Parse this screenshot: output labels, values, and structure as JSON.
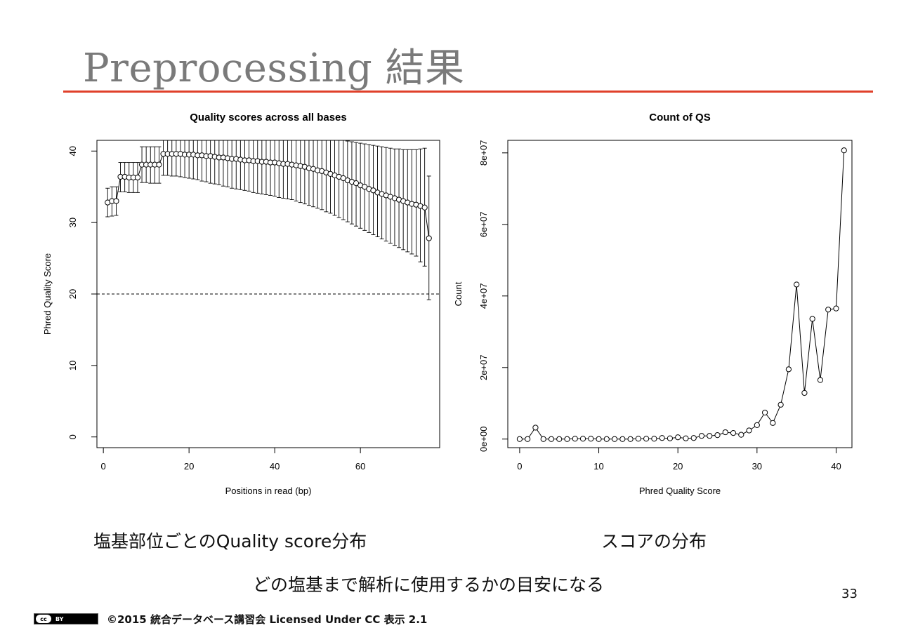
{
  "slide": {
    "title": "Preprocessing 結果",
    "caption_left": "塩基部位ごとのQuality score分布",
    "caption_right": "スコアの分布",
    "caption_bottom": "どの塩基まで解析に使用するかの目安になる",
    "page_number": "33",
    "footer": "©2015 統合データベース講習会 Licensed Under CC  表示 2.1",
    "cc_badge": {
      "cc": "cc",
      "by": "BY"
    },
    "accent_color": "#e0402a"
  },
  "chart_data": [
    {
      "type": "line",
      "title": "Quality scores across all bases",
      "xlabel": "Positions in read (bp)",
      "ylabel": "Phred Quality Score",
      "xlim": [
        -1.5,
        78.5
      ],
      "ylim": [
        -1.5,
        41.5
      ],
      "xticks": [
        0,
        20,
        40,
        60
      ],
      "yticks": [
        0,
        10,
        20,
        30,
        40
      ],
      "reference_line": 20,
      "points": [
        {
          "x": 1,
          "y": 32.8,
          "lo": 30.8,
          "hi": 34.8
        },
        {
          "x": 2,
          "y": 33.0,
          "lo": 30.9,
          "hi": 35.0
        },
        {
          "x": 3,
          "y": 33.0,
          "lo": 31.0,
          "hi": 35.0
        },
        {
          "x": 4,
          "y": 36.4,
          "lo": 34.3,
          "hi": 38.4
        },
        {
          "x": 5,
          "y": 36.4,
          "lo": 34.3,
          "hi": 38.4
        },
        {
          "x": 6,
          "y": 36.3,
          "lo": 34.2,
          "hi": 38.4
        },
        {
          "x": 7,
          "y": 36.3,
          "lo": 34.2,
          "hi": 38.4
        },
        {
          "x": 8,
          "y": 36.3,
          "lo": 34.2,
          "hi": 38.4
        },
        {
          "x": 9,
          "y": 38.1,
          "lo": 35.6,
          "hi": 40.6
        },
        {
          "x": 10,
          "y": 38.1,
          "lo": 35.6,
          "hi": 40.6
        },
        {
          "x": 11,
          "y": 38.1,
          "lo": 35.5,
          "hi": 40.6
        },
        {
          "x": 12,
          "y": 38.1,
          "lo": 35.5,
          "hi": 40.6
        },
        {
          "x": 13,
          "y": 38.1,
          "lo": 35.5,
          "hi": 40.6
        },
        {
          "x": 14,
          "y": 39.6,
          "lo": 36.6,
          "hi": 41.5
        },
        {
          "x": 15,
          "y": 39.6,
          "lo": 36.6,
          "hi": 41.5
        },
        {
          "x": 16,
          "y": 39.6,
          "lo": 36.5,
          "hi": 41.5
        },
        {
          "x": 17,
          "y": 39.6,
          "lo": 36.5,
          "hi": 41.5
        },
        {
          "x": 18,
          "y": 39.6,
          "lo": 36.4,
          "hi": 41.5
        },
        {
          "x": 19,
          "y": 39.5,
          "lo": 36.3,
          "hi": 41.5
        },
        {
          "x": 20,
          "y": 39.5,
          "lo": 36.2,
          "hi": 41.5
        },
        {
          "x": 21,
          "y": 39.5,
          "lo": 36.1,
          "hi": 41.5
        },
        {
          "x": 22,
          "y": 39.4,
          "lo": 36.0,
          "hi": 41.5
        },
        {
          "x": 23,
          "y": 39.4,
          "lo": 35.8,
          "hi": 41.5
        },
        {
          "x": 24,
          "y": 39.3,
          "lo": 35.7,
          "hi": 41.5
        },
        {
          "x": 25,
          "y": 39.3,
          "lo": 35.5,
          "hi": 41.5
        },
        {
          "x": 26,
          "y": 39.2,
          "lo": 35.4,
          "hi": 41.5
        },
        {
          "x": 27,
          "y": 39.1,
          "lo": 35.3,
          "hi": 41.5
        },
        {
          "x": 28,
          "y": 39.1,
          "lo": 35.1,
          "hi": 41.5
        },
        {
          "x": 29,
          "y": 39.0,
          "lo": 35.0,
          "hi": 41.5
        },
        {
          "x": 30,
          "y": 38.9,
          "lo": 34.8,
          "hi": 41.5
        },
        {
          "x": 31,
          "y": 38.9,
          "lo": 34.7,
          "hi": 41.5
        },
        {
          "x": 32,
          "y": 38.8,
          "lo": 34.6,
          "hi": 41.5
        },
        {
          "x": 33,
          "y": 38.7,
          "lo": 34.5,
          "hi": 41.5
        },
        {
          "x": 34,
          "y": 38.7,
          "lo": 34.4,
          "hi": 41.5
        },
        {
          "x": 35,
          "y": 38.6,
          "lo": 34.2,
          "hi": 41.5
        },
        {
          "x": 36,
          "y": 38.6,
          "lo": 34.1,
          "hi": 41.5
        },
        {
          "x": 37,
          "y": 38.5,
          "lo": 34.0,
          "hi": 41.5
        },
        {
          "x": 38,
          "y": 38.5,
          "lo": 33.9,
          "hi": 41.5
        },
        {
          "x": 39,
          "y": 38.4,
          "lo": 33.8,
          "hi": 41.5
        },
        {
          "x": 40,
          "y": 38.4,
          "lo": 33.7,
          "hi": 41.5
        },
        {
          "x": 41,
          "y": 38.3,
          "lo": 33.5,
          "hi": 41.5
        },
        {
          "x": 42,
          "y": 38.2,
          "lo": 33.4,
          "hi": 41.5
        },
        {
          "x": 43,
          "y": 38.2,
          "lo": 33.3,
          "hi": 41.5
        },
        {
          "x": 44,
          "y": 38.1,
          "lo": 33.2,
          "hi": 41.5
        },
        {
          "x": 45,
          "y": 38.0,
          "lo": 33.0,
          "hi": 41.5
        },
        {
          "x": 46,
          "y": 37.9,
          "lo": 32.8,
          "hi": 41.5
        },
        {
          "x": 47,
          "y": 37.8,
          "lo": 32.6,
          "hi": 41.5
        },
        {
          "x": 48,
          "y": 37.6,
          "lo": 32.4,
          "hi": 41.5
        },
        {
          "x": 49,
          "y": 37.5,
          "lo": 32.2,
          "hi": 41.5
        },
        {
          "x": 50,
          "y": 37.3,
          "lo": 32.0,
          "hi": 41.5
        },
        {
          "x": 51,
          "y": 37.2,
          "lo": 31.8,
          "hi": 41.5
        },
        {
          "x": 52,
          "y": 37.0,
          "lo": 31.5,
          "hi": 41.5
        },
        {
          "x": 53,
          "y": 36.8,
          "lo": 31.3,
          "hi": 41.5
        },
        {
          "x": 54,
          "y": 36.6,
          "lo": 31.0,
          "hi": 41.5
        },
        {
          "x": 55,
          "y": 36.4,
          "lo": 30.7,
          "hi": 41.5
        },
        {
          "x": 56,
          "y": 36.2,
          "lo": 30.4,
          "hi": 41.5
        },
        {
          "x": 57,
          "y": 35.9,
          "lo": 30.1,
          "hi": 41.4
        },
        {
          "x": 58,
          "y": 35.7,
          "lo": 29.8,
          "hi": 41.3
        },
        {
          "x": 59,
          "y": 35.5,
          "lo": 29.5,
          "hi": 41.2
        },
        {
          "x": 60,
          "y": 35.2,
          "lo": 29.2,
          "hi": 41.1
        },
        {
          "x": 61,
          "y": 35.0,
          "lo": 28.9,
          "hi": 41.0
        },
        {
          "x": 62,
          "y": 34.7,
          "lo": 28.6,
          "hi": 40.9
        },
        {
          "x": 63,
          "y": 34.5,
          "lo": 28.3,
          "hi": 40.8
        },
        {
          "x": 64,
          "y": 34.2,
          "lo": 28.0,
          "hi": 40.7
        },
        {
          "x": 65,
          "y": 34.0,
          "lo": 27.7,
          "hi": 40.6
        },
        {
          "x": 66,
          "y": 33.8,
          "lo": 27.4,
          "hi": 40.5
        },
        {
          "x": 67,
          "y": 33.6,
          "lo": 27.1,
          "hi": 40.4
        },
        {
          "x": 68,
          "y": 33.4,
          "lo": 26.8,
          "hi": 40.3
        },
        {
          "x": 69,
          "y": 33.2,
          "lo": 26.5,
          "hi": 40.3
        },
        {
          "x": 70,
          "y": 33.0,
          "lo": 26.2,
          "hi": 40.2
        },
        {
          "x": 71,
          "y": 32.8,
          "lo": 25.9,
          "hi": 40.2
        },
        {
          "x": 72,
          "y": 32.6,
          "lo": 25.6,
          "hi": 40.2
        },
        {
          "x": 73,
          "y": 32.5,
          "lo": 25.3,
          "hi": 40.2
        },
        {
          "x": 74,
          "y": 32.3,
          "lo": 24.5,
          "hi": 40.3
        },
        {
          "x": 75,
          "y": 32.1,
          "lo": 23.9,
          "hi": 40.4
        },
        {
          "x": 76,
          "y": 27.8,
          "lo": 19.2,
          "hi": 36.5
        }
      ]
    },
    {
      "type": "line",
      "title": "Count of QS",
      "xlabel": "Phred Quality Score",
      "ylabel": "Count",
      "xlim": [
        -1.5,
        42
      ],
      "ylim": [
        -2400000,
        83500000
      ],
      "xticks": [
        0,
        10,
        20,
        30,
        40
      ],
      "yticks": [
        0,
        20000000,
        40000000,
        60000000,
        80000000
      ],
      "ytick_labels": [
        "0e+00",
        "2e+07",
        "4e+07",
        "6e+07",
        "8e+07"
      ],
      "x": [
        0,
        1,
        2,
        3,
        4,
        5,
        6,
        7,
        8,
        9,
        10,
        11,
        12,
        13,
        14,
        15,
        16,
        17,
        18,
        19,
        20,
        21,
        22,
        23,
        24,
        25,
        26,
        27,
        28,
        29,
        30,
        31,
        32,
        33,
        34,
        35,
        36,
        37,
        38,
        39,
        40,
        41
      ],
      "y": [
        0,
        0,
        3200000,
        0,
        0,
        0,
        0,
        100000,
        100000,
        100000,
        0,
        0,
        0,
        0,
        0,
        100000,
        100000,
        100000,
        300000,
        200000,
        500000,
        200000,
        300000,
        900000,
        900000,
        1100000,
        1900000,
        1700000,
        1200000,
        2400000,
        3900000,
        7400000,
        4500000,
        9600000,
        19500000,
        43200000,
        12900000,
        33600000,
        16500000,
        36200000,
        36500000,
        80700000
      ]
    }
  ]
}
